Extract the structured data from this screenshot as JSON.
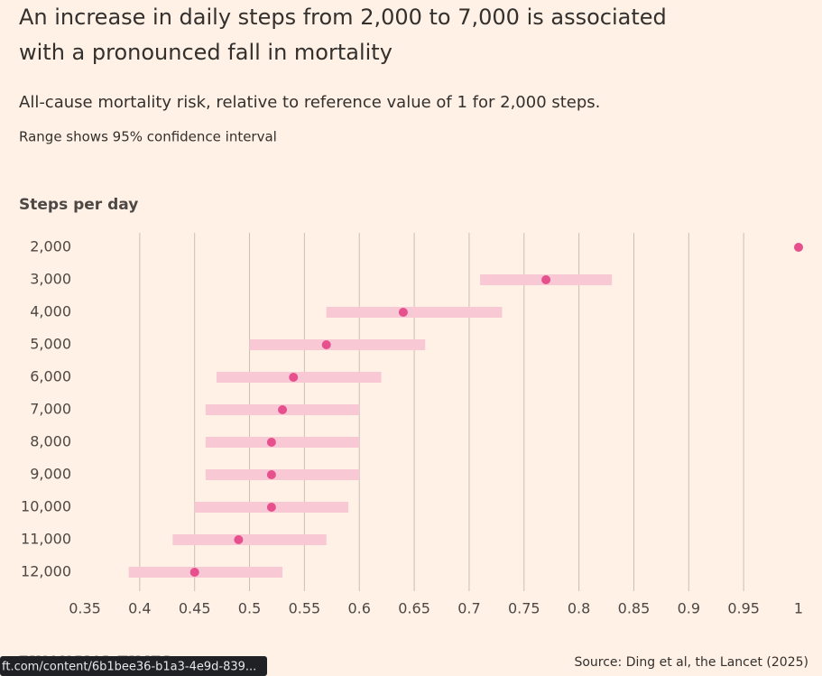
{
  "chart_data": {
    "type": "dot_range",
    "title": "An increase in daily steps from 2,000 to 7,000 is associated with a pronounced fall in mortality",
    "subtitle": "All-cause mortality risk, relative to reference value of 1 for 2,000 steps.",
    "note": "Range shows 95% confidence interval",
    "y_label": "Steps per day",
    "categories": [
      "2,000",
      "3,000",
      "4,000",
      "5,000",
      "6,000",
      "7,000",
      "8,000",
      "9,000",
      "10,000",
      "11,000",
      "12,000"
    ],
    "values": [
      1,
      0.77,
      0.64,
      0.57,
      0.54,
      0.53,
      0.52,
      0.52,
      0.52,
      0.49,
      0.45
    ],
    "low": [
      null,
      0.71,
      0.57,
      0.5,
      0.47,
      0.46,
      0.46,
      0.46,
      0.45,
      0.43,
      0.39
    ],
    "high": [
      null,
      0.83,
      0.73,
      0.66,
      0.62,
      0.6,
      0.6,
      0.6,
      0.59,
      0.57,
      0.53
    ],
    "color": "#e5508d",
    "range_color": "#f8c8d4",
    "xlim": [
      0.35,
      1
    ],
    "xticks": [
      0.35,
      0.4,
      0.45,
      0.5,
      0.55,
      0.6,
      0.65,
      0.7,
      0.75,
      0.8,
      0.85,
      0.9,
      0.95,
      1
    ],
    "grid": true
  },
  "source": "Source: Ding et al, the Lancet (2025)",
  "logo": "FINANCIAL TIMES",
  "status_bar": "ft.com/content/6b1bee36-b1a3-4e9d-839..."
}
